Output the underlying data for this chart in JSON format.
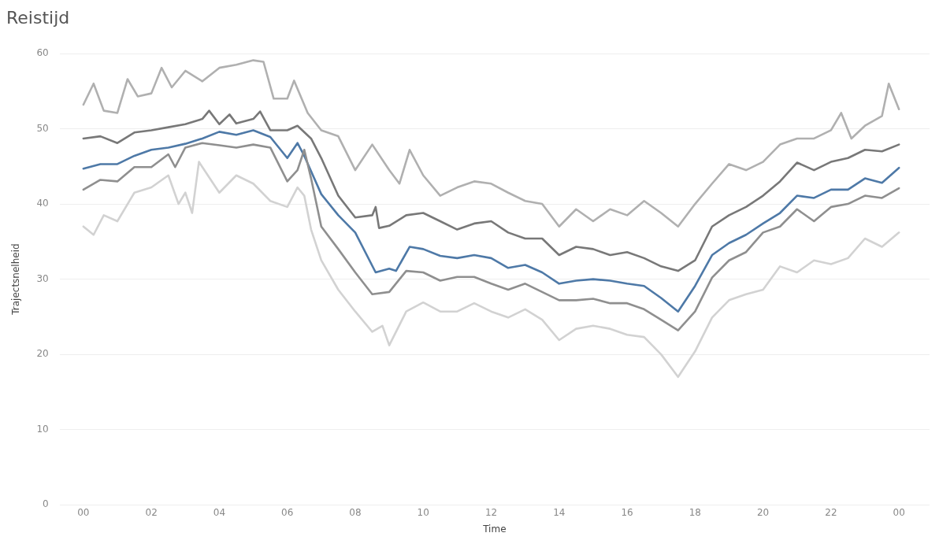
{
  "chart_data": {
    "type": "line",
    "title": "Reistijd",
    "xlabel": "Time",
    "ylabel": "Trajectsnelheid",
    "grid": "y",
    "legend": false,
    "marker": "none",
    "line_style": "solid",
    "xlim": [
      -0.7,
      24.9
    ],
    "ylim": [
      0,
      60
    ],
    "xticks": [
      {
        "value": 0,
        "label": "00"
      },
      {
        "value": 2,
        "label": "02"
      },
      {
        "value": 4,
        "label": "04"
      },
      {
        "value": 6,
        "label": "06"
      },
      {
        "value": 8,
        "label": "08"
      },
      {
        "value": 10,
        "label": "10"
      },
      {
        "value": 12,
        "label": "12"
      },
      {
        "value": 14,
        "label": "14"
      },
      {
        "value": 16,
        "label": "16"
      },
      {
        "value": 18,
        "label": "18"
      },
      {
        "value": 20,
        "label": "20"
      },
      {
        "value": 22,
        "label": "22"
      },
      {
        "value": 24,
        "label": "00"
      }
    ],
    "yticks": [
      0,
      10,
      20,
      30,
      40,
      50,
      60
    ],
    "series": [
      {
        "color": "#d2d2d2",
        "x": [
          0,
          0.3,
          0.6,
          1,
          1.5,
          2,
          2.5,
          2.8,
          3,
          3.2,
          3.4,
          4,
          4.5,
          5,
          5.5,
          6,
          6.3,
          6.5,
          6.7,
          7,
          7.5,
          8,
          8.5,
          8.8,
          9,
          9.5,
          10,
          10.5,
          11,
          11.5,
          12,
          12.5,
          13,
          13.5,
          14,
          14.5,
          15,
          15.5,
          16,
          16.5,
          17,
          17.5,
          18,
          18.5,
          19,
          19.5,
          20,
          20.5,
          21,
          21.5,
          22,
          22.5,
          23,
          23.5,
          24
        ],
        "values": [
          37.0,
          35.9,
          38.5,
          37.7,
          41.5,
          42.2,
          43.8,
          40.0,
          41.5,
          38.8,
          45.6,
          41.5,
          43.8,
          42.7,
          40.4,
          39.6,
          42.2,
          41.1,
          36.6,
          32.5,
          28.6,
          25.7,
          23.0,
          23.8,
          21.2,
          25.7,
          26.9,
          25.7,
          25.7,
          26.8,
          25.7,
          24.9,
          26.0,
          24.6,
          21.9,
          23.4,
          23.8,
          23.4,
          22.6,
          22.3,
          20.0,
          17.0,
          20.4,
          24.9,
          27.2,
          28.0,
          28.6,
          31.7,
          30.9,
          32.5,
          32.0,
          32.8,
          35.4,
          34.3,
          36.2
        ]
      },
      {
        "color": "#b0b0b0",
        "x": [
          0,
          0.3,
          0.6,
          1,
          1.3,
          1.6,
          2,
          2.3,
          2.6,
          3,
          3.5,
          4,
          4.5,
          5,
          5.3,
          5.6,
          6,
          6.2,
          6.6,
          7,
          7.5,
          8,
          8.5,
          9,
          9.3,
          9.6,
          10,
          10.5,
          11,
          11.5,
          12,
          12.5,
          13,
          13.5,
          14,
          14.5,
          15,
          15.5,
          16,
          16.5,
          17,
          17.5,
          18,
          18.5,
          19,
          19.5,
          20,
          20.5,
          21,
          21.5,
          22,
          22.3,
          22.6,
          23,
          23.5,
          23.7,
          24
        ],
        "values": [
          53.2,
          56.0,
          52.4,
          52.1,
          56.6,
          54.3,
          54.7,
          58.1,
          55.5,
          57.7,
          56.3,
          58.1,
          58.5,
          59.1,
          58.9,
          54.0,
          54.0,
          56.4,
          52.1,
          49.8,
          49.0,
          44.5,
          47.9,
          44.5,
          42.7,
          47.2,
          43.8,
          41.1,
          42.2,
          43.0,
          42.7,
          41.5,
          40.4,
          40.0,
          37.0,
          39.3,
          37.7,
          39.3,
          38.5,
          40.4,
          38.8,
          37.0,
          40.0,
          42.7,
          45.3,
          44.5,
          45.6,
          47.9,
          48.7,
          48.7,
          49.8,
          52.1,
          48.7,
          50.4,
          51.7,
          56.0,
          52.6
        ]
      },
      {
        "color": "#8f8f8f",
        "x": [
          0,
          0.5,
          1,
          1.5,
          2,
          2.5,
          2.7,
          3,
          3.5,
          4,
          4.5,
          5,
          5.5,
          6,
          6.3,
          6.5,
          6.7,
          7,
          7.5,
          8,
          8.5,
          9,
          9.5,
          10,
          10.5,
          11,
          11.5,
          12,
          12.5,
          13,
          13.5,
          14,
          14.5,
          15,
          15.5,
          16,
          16.5,
          17,
          17.5,
          18,
          18.5,
          19,
          19.5,
          20,
          20.5,
          21,
          21.5,
          22,
          22.5,
          23,
          23.5,
          24
        ],
        "values": [
          41.9,
          43.2,
          43.0,
          44.9,
          44.9,
          46.6,
          44.9,
          47.5,
          48.1,
          47.8,
          47.5,
          47.9,
          47.5,
          43.0,
          44.5,
          47.2,
          43.4,
          37.0,
          34.0,
          30.9,
          28.0,
          28.3,
          31.1,
          30.9,
          29.8,
          30.3,
          30.3,
          29.4,
          28.6,
          29.4,
          28.3,
          27.2,
          27.2,
          27.4,
          26.8,
          26.8,
          26.0,
          24.6,
          23.2,
          25.7,
          30.2,
          32.5,
          33.6,
          36.2,
          37.0,
          39.3,
          37.7,
          39.6,
          40.0,
          41.1,
          40.8,
          42.1
        ]
      },
      {
        "color": "#787878",
        "x": [
          0,
          0.5,
          1,
          1.5,
          2,
          2.5,
          3,
          3.5,
          3.7,
          4,
          4.3,
          4.5,
          5,
          5.2,
          5.5,
          6,
          6.3,
          6.7,
          7,
          7.5,
          8,
          8.5,
          8.6,
          8.7,
          9,
          9.5,
          10,
          10.5,
          11,
          11.5,
          12,
          12.5,
          13,
          13.5,
          14,
          14.5,
          15,
          15.5,
          16,
          16.5,
          17,
          17.5,
          18,
          18.5,
          19,
          19.5,
          20,
          20.5,
          21,
          21.5,
          22,
          22.5,
          23,
          23.5,
          24
        ],
        "values": [
          48.7,
          49.0,
          48.1,
          49.5,
          49.8,
          50.2,
          50.6,
          51.3,
          52.4,
          50.6,
          51.9,
          50.7,
          51.3,
          52.3,
          49.8,
          49.8,
          50.4,
          48.7,
          46.1,
          41.1,
          38.2,
          38.5,
          39.6,
          36.8,
          37.1,
          38.5,
          38.8,
          37.7,
          36.6,
          37.4,
          37.7,
          36.2,
          35.4,
          35.4,
          33.2,
          34.3,
          34.0,
          33.2,
          33.6,
          32.8,
          31.7,
          31.1,
          32.5,
          37.0,
          38.5,
          39.6,
          41.1,
          43.0,
          45.5,
          44.5,
          45.6,
          46.1,
          47.2,
          47.0,
          47.9
        ]
      },
      {
        "color": "#4e79a7",
        "x": [
          0,
          0.5,
          1,
          1.5,
          2,
          2.5,
          3,
          3.5,
          4,
          4.5,
          5,
          5.5,
          6,
          6.3,
          6.5,
          7,
          7.5,
          8,
          8.6,
          9,
          9.2,
          9.6,
          10,
          10.5,
          11,
          11.5,
          12,
          12.5,
          13,
          13.5,
          14,
          14.5,
          15,
          15.5,
          16,
          16.5,
          17,
          17.5,
          18,
          18.5,
          19,
          19.5,
          20,
          20.5,
          21,
          21.5,
          22,
          22.5,
          23,
          23.5,
          24
        ],
        "values": [
          44.7,
          45.3,
          45.3,
          46.4,
          47.2,
          47.5,
          48.0,
          48.7,
          49.6,
          49.2,
          49.8,
          48.9,
          46.1,
          48.1,
          46.4,
          41.3,
          38.5,
          36.2,
          30.9,
          31.4,
          31.1,
          34.3,
          34.0,
          33.1,
          32.8,
          33.2,
          32.8,
          31.5,
          31.9,
          30.9,
          29.4,
          29.8,
          30.0,
          29.8,
          29.4,
          29.1,
          27.5,
          25.7,
          29.1,
          33.2,
          34.8,
          35.9,
          37.4,
          38.8,
          41.1,
          40.8,
          41.9,
          41.9,
          43.4,
          42.8,
          44.8
        ]
      }
    ]
  }
}
